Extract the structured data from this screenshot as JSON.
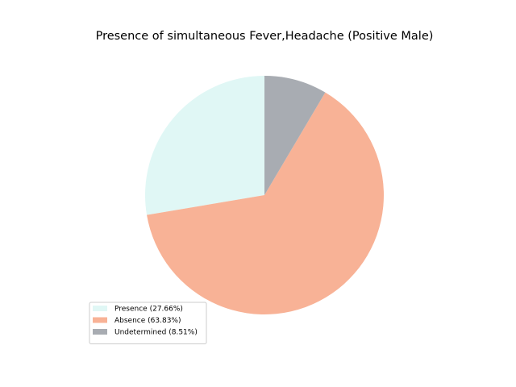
{
  "chart_data": {
    "type": "pie",
    "title": "Presence of simultaneous Fever,Headache (Positive Male)",
    "categories": [
      "Presence (27.66%)",
      "Absence (63.83%)",
      "Undetermined (8.51%)"
    ],
    "values": [
      27.66,
      63.83,
      8.51
    ],
    "colors": [
      "#e0f7f5",
      "#f8b296",
      "#a8acb2"
    ],
    "legend": "lower left"
  }
}
